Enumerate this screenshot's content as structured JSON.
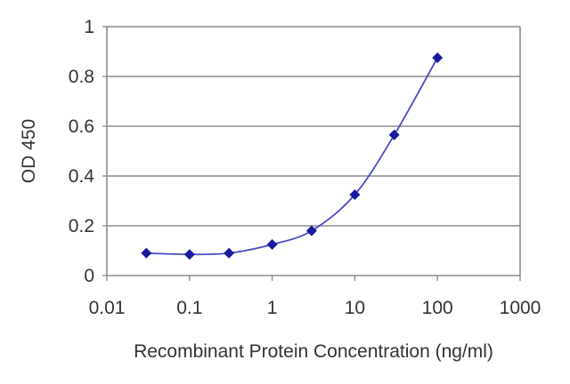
{
  "chart_data": {
    "type": "line",
    "title": "",
    "xlabel": "Recombinant Protein Concentration (ng/ml)",
    "ylabel": "OD 450",
    "x_scale": "log",
    "xlim": [
      0.01,
      1000
    ],
    "ylim": [
      0,
      1
    ],
    "x_ticks": [
      0.01,
      0.1,
      1,
      10,
      100,
      1000
    ],
    "x_tick_labels": [
      "0.01",
      "0.1",
      "1",
      "10",
      "100",
      "1000"
    ],
    "y_ticks": [
      0,
      0.2,
      0.4,
      0.6,
      0.8,
      1
    ],
    "y_tick_labels": [
      "0",
      "0.2",
      "0.4",
      "0.6",
      "0.8",
      "1"
    ],
    "grid": "horizontal",
    "legend": "none",
    "series": [
      {
        "color": "#1a1aa0",
        "marker": "diamond",
        "x": [
          0.03,
          0.1,
          0.3,
          1,
          3,
          10,
          30,
          100
        ],
        "y": [
          0.09,
          0.085,
          0.09,
          0.125,
          0.18,
          0.325,
          0.565,
          0.875
        ]
      }
    ],
    "colors": {
      "line": "#4a4ac8",
      "marker": "#1a1aa0",
      "grid": "#8c8c8c",
      "axis": "#8c8c8c",
      "text": "#333333"
    }
  }
}
